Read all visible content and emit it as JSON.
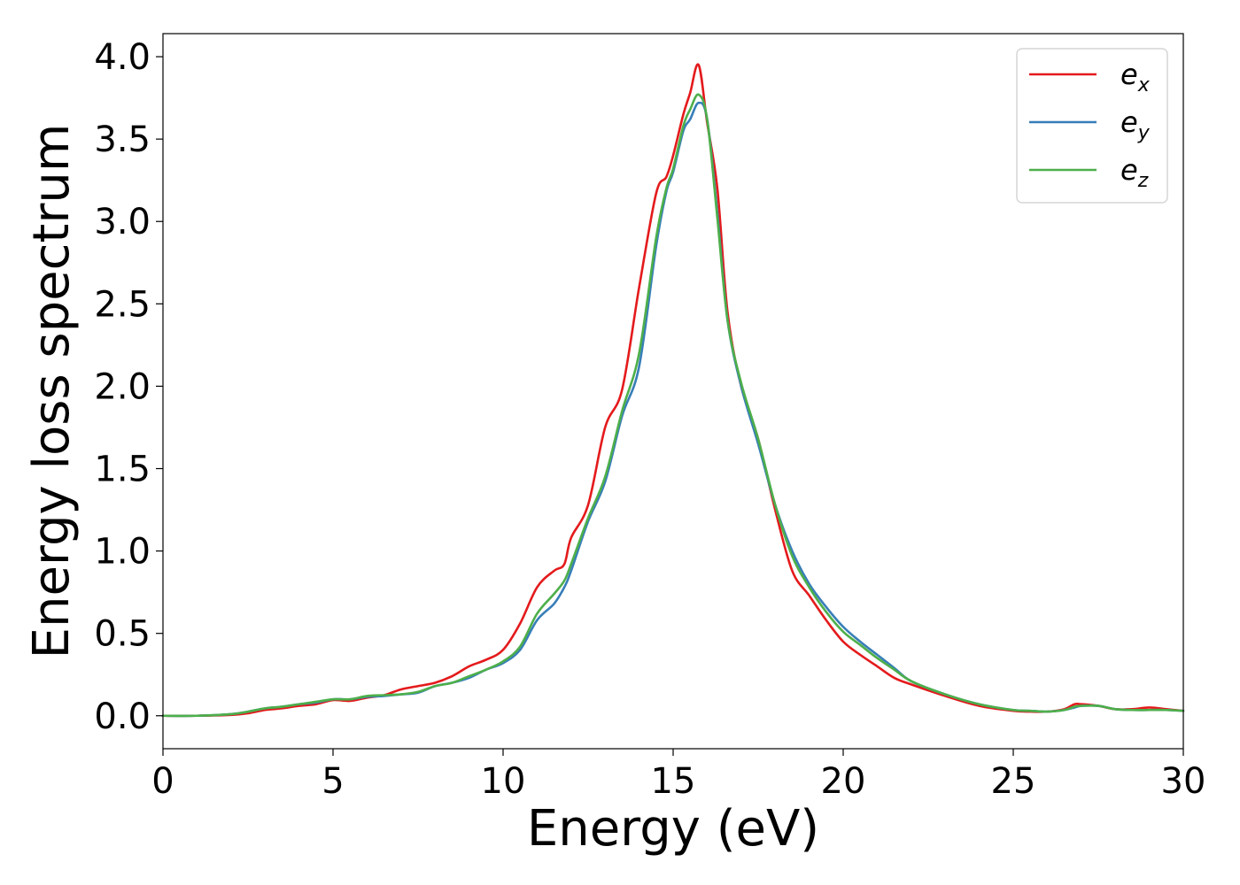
{
  "chart_data": {
    "type": "line",
    "xlabel": "Energy (eV)",
    "ylabel": "Energy loss spectrum",
    "xlim": [
      0,
      30
    ],
    "ylim": [
      -0.2,
      4.14
    ],
    "xticks": [
      0,
      5,
      10,
      15,
      20,
      25,
      30
    ],
    "yticks": [
      0.0,
      0.5,
      1.0,
      1.5,
      2.0,
      2.5,
      3.0,
      3.5,
      4.0
    ],
    "xtick_labels": [
      "0",
      "5",
      "10",
      "15",
      "20",
      "25",
      "30"
    ],
    "ytick_labels": [
      "0.0",
      "0.5",
      "1.0",
      "1.5",
      "2.0",
      "2.5",
      "3.0",
      "3.5",
      "4.0"
    ],
    "grid": false,
    "legend_position": "top-right",
    "series": [
      {
        "name": "e_x",
        "label_main": "e",
        "label_sub": "x",
        "color": "#e41a1c",
        "x": [
          0,
          1,
          2,
          2.5,
          3,
          3.5,
          4,
          4.5,
          5,
          5.5,
          6,
          6.5,
          7,
          7.5,
          8,
          8.5,
          9,
          9.5,
          10,
          10.5,
          11,
          11.5,
          11.8,
          12,
          12.5,
          13,
          13.5,
          14,
          14.5,
          14.8,
          15,
          15.3,
          15.5,
          15.75,
          16,
          16.3,
          16.6,
          17,
          17.5,
          18,
          18.5,
          19,
          19.5,
          20,
          20.5,
          21,
          21.5,
          22,
          23,
          24,
          25,
          25.5,
          26,
          26.5,
          26.8,
          27,
          27.5,
          28,
          28.5,
          29,
          29.5,
          30
        ],
        "y": [
          0,
          0,
          0.005,
          0.015,
          0.035,
          0.045,
          0.06,
          0.07,
          0.095,
          0.09,
          0.11,
          0.125,
          0.16,
          0.18,
          0.2,
          0.24,
          0.3,
          0.34,
          0.4,
          0.56,
          0.78,
          0.88,
          0.92,
          1.08,
          1.28,
          1.75,
          1.98,
          2.6,
          3.17,
          3.27,
          3.4,
          3.65,
          3.78,
          3.95,
          3.6,
          3.2,
          2.45,
          2.0,
          1.68,
          1.25,
          0.88,
          0.73,
          0.58,
          0.45,
          0.37,
          0.3,
          0.23,
          0.19,
          0.12,
          0.06,
          0.03,
          0.025,
          0.025,
          0.04,
          0.07,
          0.07,
          0.06,
          0.04,
          0.04,
          0.05,
          0.04,
          0.03
        ]
      },
      {
        "name": "e_y",
        "label_main": "e",
        "label_sub": "y",
        "color": "#377eb8",
        "x": [
          0,
          1,
          2,
          2.5,
          3,
          3.5,
          4,
          4.5,
          5,
          5.5,
          6,
          6.5,
          7,
          7.5,
          8,
          8.5,
          9,
          9.5,
          10,
          10.5,
          11,
          11.5,
          11.8,
          12,
          12.5,
          13,
          13.5,
          14,
          14.5,
          14.8,
          15,
          15.3,
          15.5,
          15.75,
          16,
          16.3,
          16.6,
          17,
          17.5,
          18,
          18.5,
          19,
          19.5,
          20,
          20.5,
          21,
          21.5,
          22,
          23,
          24,
          25,
          25.5,
          26,
          26.5,
          26.8,
          27,
          27.5,
          28,
          28.5,
          29,
          29.5,
          30
        ],
        "y": [
          0,
          0,
          0.01,
          0.025,
          0.045,
          0.055,
          0.07,
          0.08,
          0.1,
          0.1,
          0.115,
          0.12,
          0.13,
          0.14,
          0.18,
          0.2,
          0.23,
          0.28,
          0.32,
          0.4,
          0.58,
          0.68,
          0.78,
          0.88,
          1.18,
          1.42,
          1.82,
          2.12,
          2.85,
          3.18,
          3.3,
          3.55,
          3.62,
          3.72,
          3.62,
          3.05,
          2.4,
          2.0,
          1.65,
          1.28,
          1.0,
          0.8,
          0.66,
          0.54,
          0.45,
          0.37,
          0.29,
          0.21,
          0.13,
          0.07,
          0.035,
          0.03,
          0.025,
          0.035,
          0.05,
          0.06,
          0.06,
          0.04,
          0.035,
          0.035,
          0.035,
          0.03
        ]
      },
      {
        "name": "e_z",
        "label_main": "e",
        "label_sub": "z",
        "color": "#4daf4a",
        "x": [
          0,
          1,
          2,
          2.5,
          3,
          3.5,
          4,
          4.5,
          5,
          5.5,
          6,
          6.5,
          7,
          7.5,
          8,
          8.5,
          9,
          9.5,
          10,
          10.5,
          11,
          11.5,
          11.8,
          12,
          12.5,
          13,
          13.5,
          14,
          14.5,
          14.8,
          15,
          15.3,
          15.5,
          15.75,
          16,
          16.3,
          16.6,
          17,
          17.5,
          18,
          18.5,
          19,
          19.5,
          20,
          20.5,
          21,
          21.5,
          22,
          23,
          24,
          25,
          25.5,
          26,
          26.5,
          26.8,
          27,
          27.5,
          28,
          28.5,
          29,
          29.5,
          30
        ],
        "y": [
          0,
          0,
          0.01,
          0.025,
          0.045,
          0.055,
          0.07,
          0.085,
          0.1,
          0.1,
          0.12,
          0.125,
          0.13,
          0.145,
          0.18,
          0.2,
          0.24,
          0.28,
          0.33,
          0.42,
          0.62,
          0.74,
          0.82,
          0.92,
          1.2,
          1.45,
          1.85,
          2.2,
          2.9,
          3.2,
          3.32,
          3.58,
          3.68,
          3.77,
          3.62,
          3.02,
          2.4,
          2.02,
          1.68,
          1.28,
          0.97,
          0.78,
          0.63,
          0.51,
          0.43,
          0.35,
          0.28,
          0.21,
          0.13,
          0.07,
          0.035,
          0.03,
          0.025,
          0.035,
          0.055,
          0.06,
          0.06,
          0.04,
          0.035,
          0.035,
          0.035,
          0.03
        ]
      }
    ]
  }
}
